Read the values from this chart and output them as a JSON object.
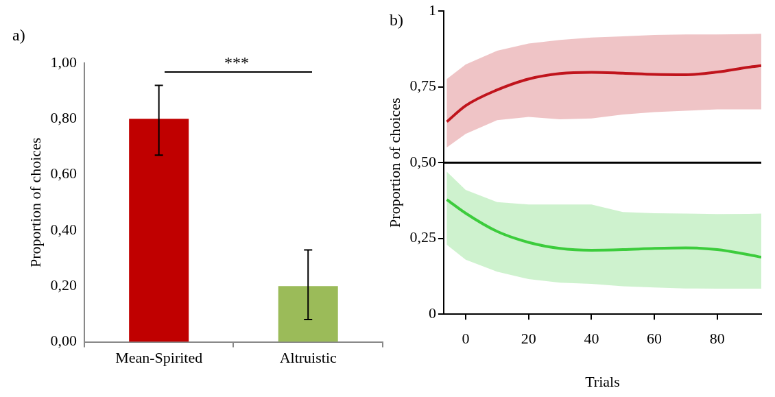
{
  "chart_data": [
    {
      "type": "bar",
      "categories": [
        "Mean-Spirited",
        "Altruistic"
      ],
      "values": [
        0.8,
        0.2
      ],
      "colors": [
        "#c00000",
        "#9bbb59"
      ],
      "errors": [
        [
          0.67,
          0.92
        ],
        [
          0.08,
          0.33
        ]
      ],
      "ylabel": "Proportion of choices",
      "ylim": [
        0,
        1
      ],
      "yticks": [
        {
          "value": 0,
          "label": "0,00"
        },
        {
          "value": 0.2,
          "label": "0,20"
        },
        {
          "value": 0.4,
          "label": "0,40"
        },
        {
          "value": 0.6,
          "label": "0,60"
        },
        {
          "value": 0.8,
          "label": "0,80"
        },
        {
          "value": 1,
          "label": "1,00"
        }
      ],
      "grid": false,
      "legend": false,
      "annotations": [
        "a)",
        "***"
      ]
    },
    {
      "type": "line",
      "x": [
        -6,
        0,
        10,
        20,
        30,
        40,
        50,
        60,
        70,
        80,
        90,
        94
      ],
      "series": [
        {
          "color": "#c0141c",
          "values": [
            0.635,
            0.688,
            0.74,
            0.776,
            0.794,
            0.798,
            0.795,
            0.791,
            0.79,
            0.799,
            0.815,
            0.82
          ],
          "upper": [
            0.776,
            0.824,
            0.869,
            0.893,
            0.905,
            0.913,
            0.917,
            0.921,
            0.923,
            0.923,
            0.924,
            0.925
          ],
          "lower": [
            0.55,
            0.595,
            0.64,
            0.651,
            0.643,
            0.646,
            0.659,
            0.667,
            0.671,
            0.676,
            0.676,
            0.676
          ]
        },
        {
          "color": "#3ccc3c",
          "values": [
            0.378,
            0.333,
            0.273,
            0.237,
            0.217,
            0.211,
            0.213,
            0.217,
            0.219,
            0.213,
            0.196,
            0.188
          ],
          "upper": [
            0.47,
            0.41,
            0.37,
            0.362,
            0.362,
            0.362,
            0.337,
            0.333,
            0.332,
            0.33,
            0.331,
            0.332
          ],
          "lower": [
            0.229,
            0.18,
            0.14,
            0.116,
            0.104,
            0.1,
            0.092,
            0.088,
            0.085,
            0.084,
            0.084,
            0.084
          ]
        }
      ],
      "xlabel": "Trials",
      "ylabel": "Proportion of choices",
      "xlim": [
        -7,
        94
      ],
      "xticks": [
        0,
        20,
        40,
        60,
        80
      ],
      "ylim": [
        0,
        1
      ],
      "yticks": [
        0,
        {
          "value": 0.25,
          "label": "0,25"
        },
        {
          "value": 0.5,
          "label": "0,50"
        },
        {
          "value": 0.75,
          "label": "0,75"
        },
        1
      ],
      "ref_lines": [
        {
          "axis": "y",
          "value": 0.5,
          "color": "#000000"
        }
      ],
      "grid": false,
      "legend": false,
      "marker": "none",
      "annotations": [
        "b)"
      ]
    }
  ]
}
